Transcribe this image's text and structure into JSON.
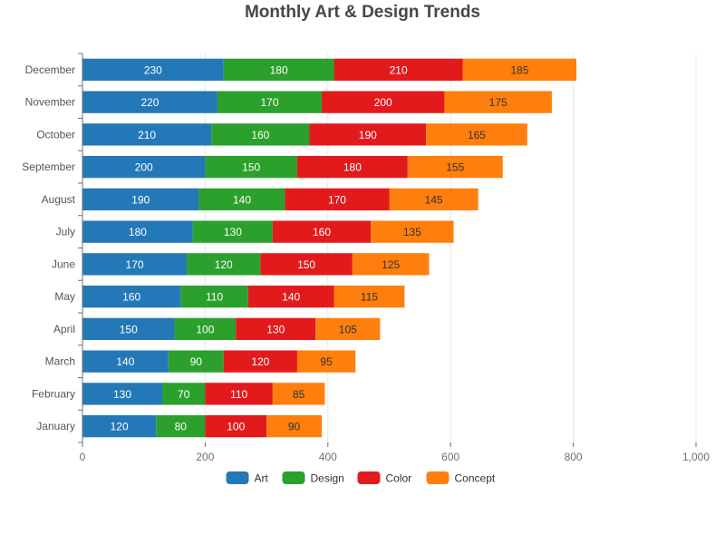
{
  "chart_data": {
    "type": "bar",
    "orientation": "horizontal",
    "stacked": true,
    "title": "Monthly Art & Design Trends",
    "categories": [
      "January",
      "February",
      "March",
      "April",
      "May",
      "June",
      "July",
      "August",
      "September",
      "October",
      "November",
      "December"
    ],
    "series": [
      {
        "name": "Art",
        "color": "#2378b8",
        "values": [
          120,
          130,
          140,
          150,
          160,
          170,
          180,
          190,
          200,
          210,
          220,
          230
        ]
      },
      {
        "name": "Design",
        "color": "#2ca02c",
        "values": [
          80,
          70,
          90,
          100,
          110,
          120,
          130,
          140,
          150,
          160,
          170,
          180
        ]
      },
      {
        "name": "Color",
        "color": "#e31a1c",
        "values": [
          100,
          110,
          120,
          130,
          140,
          150,
          160,
          170,
          180,
          190,
          200,
          210
        ]
      },
      {
        "name": "Concept",
        "color": "#ff7f0e",
        "values": [
          90,
          85,
          95,
          105,
          115,
          125,
          135,
          145,
          155,
          165,
          175,
          185
        ]
      }
    ],
    "xlim": [
      0,
      1000
    ],
    "x_ticks": [
      "0",
      "200",
      "400",
      "600",
      "800",
      "1,000"
    ],
    "grid": true,
    "legend_position": "bottom",
    "data_labels": true
  }
}
